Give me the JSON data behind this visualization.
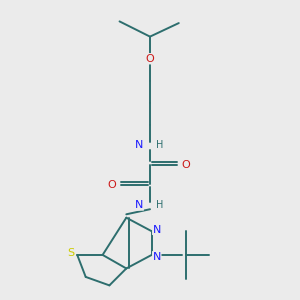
{
  "bg_color": "#ebebeb",
  "bond_color": "#2d6e6e",
  "atom_colors": {
    "N": "#1a1aff",
    "O": "#cc1a1a",
    "S": "#cccc00",
    "H": "#2d6e6e",
    "C": "#2d6e6e"
  },
  "figsize": [
    3.0,
    3.0
  ],
  "dpi": 100,
  "xlim": [
    0,
    10
  ],
  "ylim": [
    0,
    10
  ]
}
